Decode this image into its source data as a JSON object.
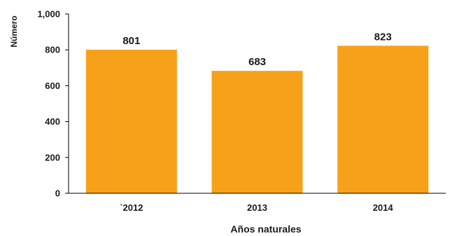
{
  "chart_data": {
    "type": "bar",
    "categories": [
      "`2012",
      "2013",
      "2014"
    ],
    "values": [
      801,
      683,
      823
    ],
    "data_labels": [
      "801",
      "683",
      "823"
    ],
    "title": "",
    "xlabel": "Años naturales",
    "ylabel": "Número",
    "ylim": [
      0,
      1000
    ],
    "yticks": [
      0,
      200,
      400,
      600,
      800,
      1000
    ],
    "ytick_labels": [
      "0",
      "200",
      "400",
      "600",
      "800",
      "1,000"
    ],
    "grid": false,
    "bar_color": "#F7A11A",
    "axis_color": "#000000"
  }
}
